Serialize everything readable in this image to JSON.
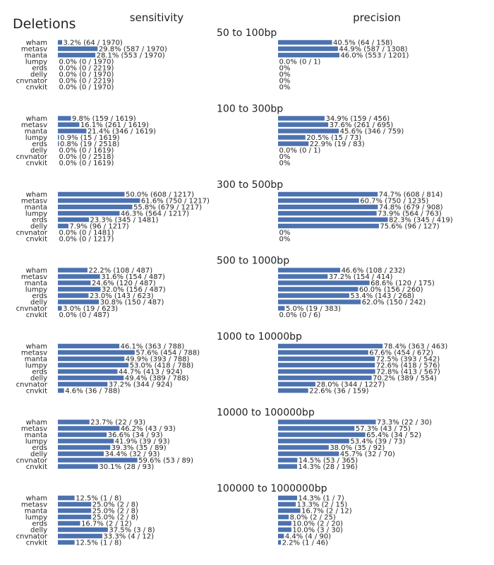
{
  "chart_data": {
    "type": "bar",
    "title": "Deletions",
    "column_titles": [
      "sensitivity",
      "precision"
    ],
    "tools": [
      "wham",
      "metasv",
      "manta",
      "lumpy",
      "erds",
      "delly",
      "cnvnator",
      "cnvkit"
    ],
    "panels": [
      {
        "title": "50 to 100bp",
        "sensitivity": {
          "values": [
            3.2,
            29.8,
            28.1,
            0.0,
            0.0,
            0.0,
            0.0,
            0.0
          ],
          "labels": [
            "3.2% (64 / 1970)",
            "29.8% (587 / 1970)",
            "28.1% (553 / 1970)",
            "0.0% (0 / 1970)",
            "0.0% (0 / 2219)",
            "0.0% (0 / 1970)",
            "0.0% (0 / 2219)",
            "0.0% (0 / 1970)"
          ]
        },
        "precision": {
          "values": [
            40.5,
            44.9,
            46.0,
            0,
            0,
            0,
            0,
            0
          ],
          "labels": [
            "40.5% (64 / 158)",
            "44.9% (587 / 1308)",
            "46.0% (553 / 1201)",
            "0.0% (0 / 1)",
            "0%",
            "0%",
            "0%",
            "0%"
          ]
        }
      },
      {
        "title": "100 to 300bp",
        "sensitivity": {
          "values": [
            9.8,
            16.1,
            21.4,
            0.9,
            0.8,
            0.0,
            0.0,
            0.0
          ],
          "labels": [
            "9.8% (159 / 1619)",
            "16.1% (261 / 1619)",
            "21.4% (346 / 1619)",
            "0.9% (15 / 1619)",
            "0.8% (19 / 2518)",
            "0.0% (0 / 1619)",
            "0.0% (0 / 2518)",
            "0.0% (0 / 1619)"
          ]
        },
        "precision": {
          "values": [
            34.9,
            37.6,
            45.6,
            20.5,
            22.9,
            0,
            0,
            0
          ],
          "labels": [
            "34.9% (159 / 456)",
            "37.6% (261 / 695)",
            "45.6% (346 / 759)",
            "20.5% (15 / 73)",
            "22.9% (19 / 83)",
            "0.0% (0 / 1)",
            "0%",
            "0%"
          ]
        }
      },
      {
        "title": "300 to 500bp",
        "sensitivity": {
          "values": [
            50.0,
            61.6,
            55.8,
            46.3,
            23.3,
            7.9,
            0.0,
            0.0
          ],
          "labels": [
            "50.0% (608 / 1217)",
            "61.6% (750 / 1217)",
            "55.8% (679 / 1217)",
            "46.3% (564 / 1217)",
            "23.3% (345 / 1481)",
            "7.9% (96 / 1217)",
            "0.0% (0 / 1481)",
            "0.0% (0 / 1217)"
          ]
        },
        "precision": {
          "values": [
            74.7,
            60.7,
            74.8,
            73.9,
            82.3,
            75.6,
            0,
            0
          ],
          "labels": [
            "74.7% (608 / 814)",
            "60.7% (750 / 1235)",
            "74.8% (679 / 908)",
            "73.9% (564 / 763)",
            "82.3% (345 / 419)",
            "75.6% (96 / 127)",
            "0%",
            "0%"
          ]
        }
      },
      {
        "title": "500 to 1000bp",
        "sensitivity": {
          "values": [
            22.2,
            31.6,
            24.6,
            32.0,
            23.0,
            30.8,
            3.0,
            0.0
          ],
          "labels": [
            "22.2% (108 / 487)",
            "31.6% (154 / 487)",
            "24.6% (120 / 487)",
            "32.0% (156 / 487)",
            "23.0% (143 / 623)",
            "30.8% (150 / 487)",
            "3.0% (19 / 623)",
            "0.0% (0 / 487)"
          ]
        },
        "precision": {
          "values": [
            46.6,
            37.2,
            68.6,
            60.0,
            53.4,
            62.0,
            5.0,
            0.0
          ],
          "labels": [
            "46.6% (108 / 232)",
            "37.2% (154 / 414)",
            "68.6% (120 / 175)",
            "60.0% (156 / 260)",
            "53.4% (143 / 268)",
            "62.0% (150 / 242)",
            "5.0% (19 / 383)",
            "0.0% (0 / 6)"
          ]
        }
      },
      {
        "title": "1000 to 10000bp",
        "sensitivity": {
          "values": [
            46.1,
            57.6,
            49.9,
            53.0,
            44.7,
            49.4,
            37.2,
            4.6
          ],
          "labels": [
            "46.1% (363 / 788)",
            "57.6% (454 / 788)",
            "49.9% (393 / 788)",
            "53.0% (418 / 788)",
            "44.7% (413 / 924)",
            "49.4% (389 / 788)",
            "37.2% (344 / 924)",
            "4.6% (36 / 788)"
          ]
        },
        "precision": {
          "values": [
            78.4,
            67.6,
            72.5,
            72.6,
            72.8,
            70.2,
            28.0,
            22.6
          ],
          "labels": [
            "78.4% (363 / 463)",
            "67.6% (454 / 672)",
            "72.5% (393 / 542)",
            "72.6% (418 / 576)",
            "72.8% (413 / 567)",
            "70.2% (389 / 554)",
            "28.0% (344 / 1227)",
            "22.6% (36 / 159)"
          ]
        }
      },
      {
        "title": "10000 to 100000bp",
        "sensitivity": {
          "values": [
            23.7,
            46.2,
            36.6,
            41.9,
            39.3,
            34.4,
            59.6,
            30.1
          ],
          "labels": [
            "23.7% (22 / 93)",
            "46.2% (43 / 93)",
            "36.6% (34 / 93)",
            "41.9% (39 / 93)",
            "39.3% (35 / 89)",
            "34.4% (32 / 93)",
            "59.6% (53 / 89)",
            "30.1% (28 / 93)"
          ]
        },
        "precision": {
          "values": [
            73.3,
            57.3,
            65.4,
            53.4,
            38.0,
            45.7,
            14.5,
            14.3
          ],
          "labels": [
            "73.3% (22 / 30)",
            "57.3% (43 / 75)",
            "65.4% (34 / 52)",
            "53.4% (39 / 73)",
            "38.0% (35 / 92)",
            "45.7% (32 / 70)",
            "14.5% (53 / 365)",
            "14.3% (28 / 196)"
          ]
        }
      },
      {
        "title": "100000 to 1000000bp",
        "sensitivity": {
          "values": [
            12.5,
            25.0,
            25.0,
            25.0,
            16.7,
            37.5,
            33.3,
            12.5
          ],
          "labels": [
            "12.5% (1 / 8)",
            "25.0% (2 / 8)",
            "25.0% (2 / 8)",
            "25.0% (2 / 8)",
            "16.7% (2 / 12)",
            "37.5% (3 / 8)",
            "33.3% (4 / 12)",
            "12.5% (1 / 8)"
          ]
        },
        "precision": {
          "values": [
            14.3,
            13.3,
            16.7,
            8.0,
            10.0,
            10.0,
            4.4,
            2.2
          ],
          "labels": [
            "14.3% (1 / 7)",
            "13.3% (2 / 15)",
            "16.7% (2 / 12)",
            "8.0% (2 / 25)",
            "10.0% (2 / 20)",
            "10.0% (3 / 30)",
            "4.4% (4 / 90)",
            "2.2% (1 / 46)"
          ]
        }
      }
    ],
    "xlim": [
      0,
      100
    ],
    "grid": false,
    "bar_color": "#4c72b0"
  }
}
